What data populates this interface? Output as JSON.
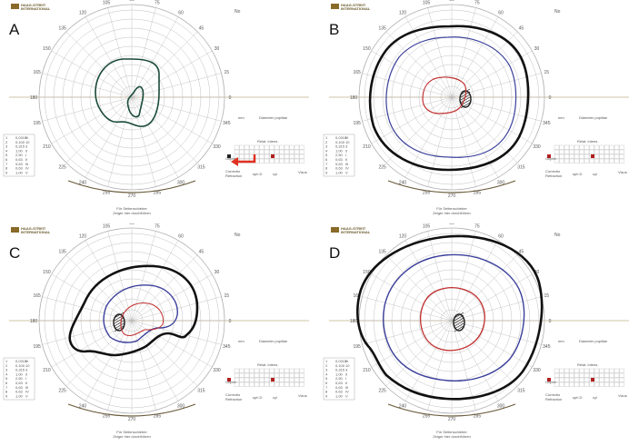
{
  "brand": {
    "line1": "HAAG-STREIT",
    "line2": "INTERNATIONAL",
    "mark": "HS"
  },
  "panels": [
    {
      "letter": "A",
      "contours": [
        {
          "color": "#1a4a38",
          "width": 1.6,
          "shape": "A"
        }
      ],
      "arrow": true,
      "marker_color": "#222"
    },
    {
      "letter": "B",
      "contours": [
        {
          "color": "#111",
          "width": 2.6,
          "shape": "B_outer"
        },
        {
          "color": "#3a3f9a",
          "width": 1.2,
          "shape": "B_mid"
        },
        {
          "color": "#c23030",
          "width": 1.2,
          "shape": "B_inner"
        }
      ],
      "arrow": false,
      "marker_color": "#b02020"
    },
    {
      "letter": "C",
      "contours": [
        {
          "color": "#111",
          "width": 2.6,
          "shape": "C_outer"
        },
        {
          "color": "#3a3f9a",
          "width": 1.4,
          "shape": "C_mid"
        },
        {
          "color": "#c23030",
          "width": 1.0,
          "shape": "C_inner"
        }
      ],
      "arrow": false,
      "marker_color": "#b02020"
    },
    {
      "letter": "D",
      "contours": [
        {
          "color": "#111",
          "width": 2.6,
          "shape": "D_outer"
        },
        {
          "color": "#3a3f9a",
          "width": 1.4,
          "shape": "D_mid"
        },
        {
          "color": "#c23030",
          "width": 1.3,
          "shape": "D_inner"
        }
      ],
      "arrow": false,
      "marker_color": "#b02020"
    }
  ],
  "degree_labels": [
    "90",
    "75",
    "60",
    "45",
    "30",
    "15",
    "0",
    "345",
    "330",
    "315",
    "300",
    "285",
    "270",
    "255",
    "240",
    "225",
    "210",
    "195",
    "180",
    "165",
    "150",
    "135",
    "120",
    "105"
  ],
  "form_text": {
    "diameter": "Diameter pupillae",
    "mm": "mm",
    "retest": "Relat. intens.",
    "objekt": "Objekt",
    "correction": "Correctio",
    "refraction": "Refraction",
    "sph": "sph D",
    "cyl": "cyl",
    "visus": "Visus",
    "no": "No",
    "bottom1": "Für Seitenschieber",
    "bottom2": "Zeiger hier durchführen"
  },
  "table_rows": [
    [
      "1",
      "0,0315",
      "III"
    ],
    [
      "2",
      "0,100",
      "10"
    ],
    [
      "3",
      "0,315",
      "3"
    ],
    [
      "4",
      "1,00",
      "0"
    ],
    [
      "5",
      "2,50",
      "I"
    ],
    [
      "6",
      "0,63",
      "II"
    ],
    [
      "7",
      "0,63",
      "III"
    ],
    [
      "8",
      "0,63",
      "IV"
    ],
    [
      "9",
      "1,00",
      "V"
    ]
  ]
}
